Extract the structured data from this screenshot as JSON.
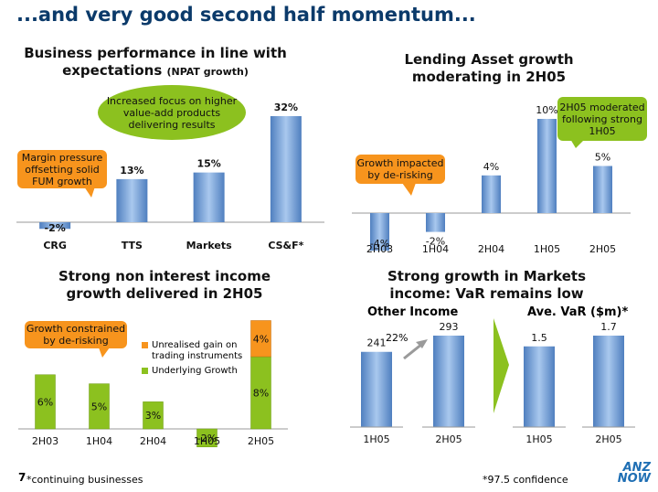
{
  "page": {
    "title": "...and very good second half momentum...",
    "page_number": "7",
    "footnote_left": "*continuing businesses",
    "footnote_right": "*97.5 confidence",
    "logo": "ANZ NOW",
    "colors": {
      "blue_bar": "#7aa6d6",
      "green": "#8cc11f",
      "orange": "#f7941d",
      "title_blue": "#0b3a6a",
      "logo_blue": "#1f6fb4"
    }
  },
  "callouts": {
    "value_add": "Increased focus on higher value-add products delivering results",
    "margin_pressure": "Margin pressure offsetting solid FUM growth",
    "de_risking_lending": "Growth impacted by de-risking",
    "moderated": "2H05 moderated following strong 1H05",
    "de_risking_nii": "Growth constrained by de-risking",
    "arrow_label": "22%"
  },
  "chart_data": [
    {
      "id": "npat",
      "type": "bar",
      "title": "Business performance in line with expectations",
      "subtitle": "(NPAT growth)",
      "categories": [
        "CRG",
        "TTS",
        "Markets",
        "CS&F*"
      ],
      "values": [
        -2,
        13,
        15,
        32
      ],
      "labels": [
        "-2%",
        "13%",
        "15%",
        "32%"
      ],
      "ylim": [
        -4,
        34
      ]
    },
    {
      "id": "lending",
      "type": "bar",
      "title": "Lending Asset growth moderating in 2H05",
      "categories": [
        "2H03",
        "1H04",
        "2H04",
        "1H05",
        "2H05"
      ],
      "values": [
        -4,
        -2,
        4,
        10,
        5
      ],
      "labels": [
        "-4%",
        "-2%",
        "4%",
        "10%",
        "5%"
      ],
      "ylim": [
        -5,
        11
      ]
    },
    {
      "id": "non_interest",
      "type": "bar",
      "title": "Strong non interest income growth delivered in 2H05",
      "categories": [
        "2H03",
        "1H04",
        "2H04",
        "1H05",
        "2H05"
      ],
      "series": [
        {
          "name": "Underlying Growth",
          "values": [
            6,
            5,
            3,
            -2,
            8
          ],
          "labels": [
            "6%",
            "5%",
            "3%",
            "-2%",
            "8%"
          ],
          "color": "#8cc11f"
        },
        {
          "name": "Unrealised gain on trading instruments",
          "values": [
            0,
            0,
            0,
            0,
            4
          ],
          "labels": [
            "",
            "",
            "",
            "",
            "4%"
          ],
          "color": "#f7941d"
        }
      ],
      "legend": "top-right",
      "ylim": [
        -2.2,
        12
      ]
    },
    {
      "id": "markets_income",
      "type": "bar",
      "title": "Strong growth in Markets income: VaR remains low",
      "subtitle": "Other Income",
      "categories": [
        "1H05",
        "2H05"
      ],
      "values": [
        241,
        293
      ],
      "labels": [
        "241",
        "293"
      ],
      "ylim": [
        0,
        310
      ]
    },
    {
      "id": "var",
      "type": "bar",
      "subtitle": "Ave. VaR ($m)*",
      "categories": [
        "1H05",
        "2H05"
      ],
      "values": [
        1.5,
        1.7
      ],
      "labels": [
        "1.5",
        "1.7"
      ],
      "ylim": [
        0,
        1.8
      ]
    }
  ]
}
